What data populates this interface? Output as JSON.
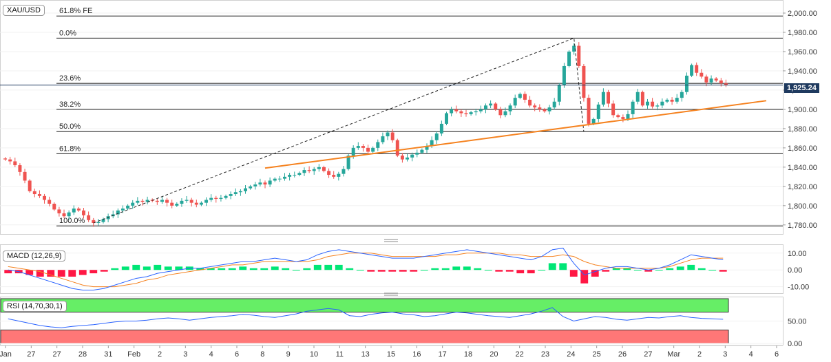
{
  "symbol": "XAU/USD",
  "last_price_label": "1,925.24",
  "colors": {
    "up": "#26a69a",
    "down": "#ef5350",
    "trendline": "#f5821f",
    "macd_line": "#2962ff",
    "signal_line": "#f5821f",
    "hist_pos": "#00e676",
    "hist_neg": "#ff1744",
    "rsi_line": "#2962ff",
    "overbought_band": "#66ee66",
    "oversold_band": "#ff7777",
    "price_tag": "#1f3a5f"
  },
  "chart_data": [
    {
      "type": "candlestick",
      "title": "XAU/USD",
      "ylim": [
        1772,
        2010
      ],
      "y_ticks": [
        1780,
        1800,
        1820,
        1840,
        1860,
        1880,
        1900,
        1920,
        1940,
        1960,
        1980,
        2000
      ],
      "y_tick_labels": [
        "1,780.00",
        "1,800.00",
        "1,820.00",
        "1,840.00",
        "1,860.00",
        "1,880.00",
        "1,900.00",
        "1,920.00",
        "1,940.00",
        "1,960.00",
        "1,980.00",
        "2,000.00"
      ],
      "x_tick_labels": [
        "Jan",
        "27",
        "27",
        "28",
        "31",
        "Feb",
        "2",
        "3",
        "4",
        "6",
        "8",
        "9",
        "10",
        "11",
        "13",
        "15",
        "16",
        "17",
        "18",
        "20",
        "22",
        "23",
        "24",
        "25",
        "26",
        "27",
        "Mar",
        "2",
        "3",
        "4",
        "6"
      ],
      "close_path": [
        1848,
        1846,
        1842,
        1835,
        1826,
        1815,
        1812,
        1810,
        1806,
        1802,
        1796,
        1792,
        1789,
        1793,
        1797,
        1795,
        1790,
        1785,
        1782,
        1783,
        1786,
        1789,
        1791,
        1795,
        1797,
        1800,
        1803,
        1805,
        1804,
        1806,
        1805,
        1804,
        1806,
        1803,
        1800,
        1802,
        1805,
        1806,
        1803,
        1801,
        1803,
        1806,
        1808,
        1807,
        1808,
        1810,
        1812,
        1814,
        1815,
        1818,
        1820,
        1822,
        1824,
        1822,
        1826,
        1828,
        1828,
        1830,
        1832,
        1832,
        1834,
        1837,
        1836,
        1838,
        1840,
        1836,
        1832,
        1830,
        1833,
        1838,
        1852,
        1860,
        1862,
        1860,
        1856,
        1860,
        1866,
        1872,
        1876,
        1868,
        1852,
        1848,
        1850,
        1853,
        1855,
        1858,
        1862,
        1868,
        1875,
        1885,
        1896,
        1900,
        1898,
        1896,
        1895,
        1897,
        1898,
        1900,
        1904,
        1906,
        1900,
        1894,
        1898,
        1904,
        1912,
        1916,
        1910,
        1904,
        1902,
        1900,
        1898,
        1902,
        1908,
        1925,
        1945,
        1960,
        1966,
        1945,
        1912,
        1885,
        1890,
        1905,
        1918,
        1906,
        1894,
        1892,
        1890,
        1895,
        1908,
        1918,
        1904,
        1908,
        1903,
        1904,
        1908,
        1910,
        1908,
        1912,
        1918,
        1935,
        1946,
        1938,
        1934,
        1928,
        1932,
        1930,
        1927,
        1925.24
      ],
      "fibonacci_levels": [
        {
          "label": "61.8% FE",
          "price": 1997
        },
        {
          "label": "0.0%",
          "price": 1974
        },
        {
          "label": "23.6%",
          "price": 1927
        },
        {
          "label": "38.2%",
          "price": 1900
        },
        {
          "label": "50.0%",
          "price": 1877
        },
        {
          "label": "61.8%",
          "price": 1854
        },
        {
          "label": "100.0%",
          "price": 1779
        }
      ],
      "fib_swing": {
        "from_price": 1782,
        "to_price": 1974,
        "retrace_to_price": 1877
      },
      "trendline": {
        "from_price": 1839,
        "to_price": 1909
      },
      "last_price": 1925.24
    },
    {
      "type": "line",
      "title": "MACD (12,26,9)",
      "ylim": [
        -13,
        14
      ],
      "y_ticks": [
        10,
        0,
        -10
      ],
      "y_tick_labels": [
        "10.00",
        "0.00",
        "-10.00"
      ],
      "series": [
        {
          "name": "MACD",
          "values": [
            0,
            -1,
            -3,
            -5,
            -7,
            -9,
            -11,
            -12,
            -12,
            -11,
            -9,
            -7,
            -5,
            -4,
            -2,
            -1,
            0,
            1,
            1,
            2,
            3,
            4,
            5,
            5,
            6,
            7,
            6,
            5,
            6,
            9,
            11,
            12,
            11,
            10,
            9,
            8,
            7,
            7,
            7,
            8,
            9,
            10,
            11,
            12,
            11,
            10,
            9,
            8,
            7,
            6,
            8,
            12,
            13,
            4,
            -3,
            -1,
            1,
            2,
            2,
            1,
            0,
            1,
            3,
            6,
            9,
            8,
            7,
            6
          ]
        },
        {
          "name": "Signal",
          "values": [
            2,
            1,
            0,
            -1,
            -3,
            -5,
            -7,
            -9,
            -10,
            -10,
            -10,
            -9,
            -8,
            -6,
            -5,
            -3,
            -2,
            -1,
            0,
            1,
            2,
            3,
            3,
            4,
            5,
            5,
            5,
            5,
            5,
            6,
            8,
            9,
            10,
            10,
            10,
            9,
            8,
            8,
            8,
            8,
            8,
            9,
            9,
            10,
            10,
            10,
            10,
            9,
            9,
            8,
            8,
            8,
            9,
            8,
            5,
            3,
            2,
            1,
            1,
            1,
            1,
            1,
            2,
            4,
            6,
            7,
            7,
            7
          ]
        }
      ]
    },
    {
      "type": "line",
      "title": "RSI (14,70,30,1)",
      "ylim": [
        0,
        100
      ],
      "y_ticks": [
        50,
        0
      ],
      "y_tick_labels": [
        "50.00",
        "0.00"
      ],
      "overbought": 70,
      "oversold": 30,
      "series": [
        {
          "name": "RSI",
          "values": [
            55,
            50,
            45,
            40,
            37,
            35,
            38,
            40,
            42,
            45,
            48,
            50,
            50,
            52,
            55,
            57,
            55,
            52,
            55,
            58,
            60,
            62,
            65,
            63,
            60,
            58,
            62,
            66,
            72,
            75,
            78,
            75,
            62,
            60,
            65,
            68,
            70,
            66,
            64,
            60,
            62,
            66,
            70,
            68,
            65,
            62,
            60,
            58,
            62,
            66,
            72,
            80,
            60,
            50,
            55,
            60,
            58,
            54,
            52,
            55,
            58,
            57,
            60,
            62,
            58,
            56,
            55,
            54
          ]
        }
      ]
    }
  ]
}
